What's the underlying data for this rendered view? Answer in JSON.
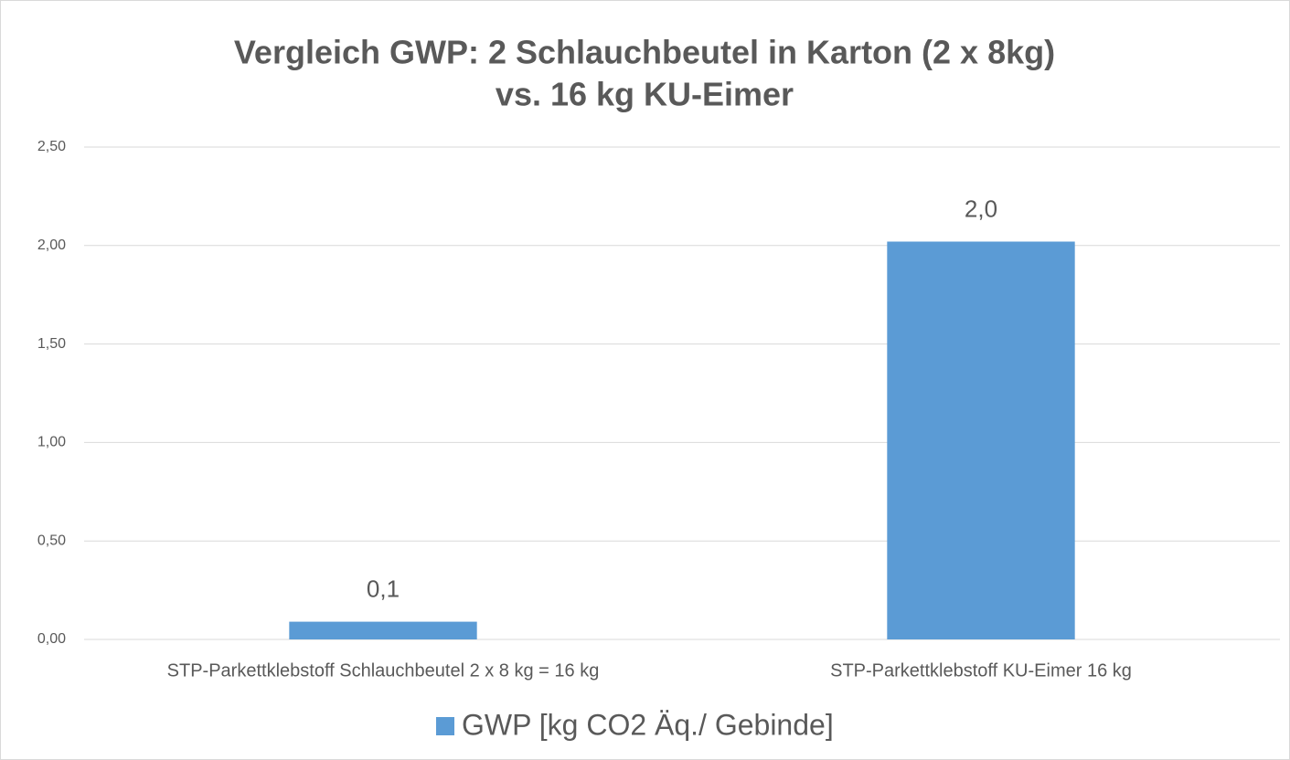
{
  "chart_data": {
    "type": "bar",
    "title": [
      "Vergleich GWP: 2 Schlauchbeutel in Karton (2 x 8kg)",
      "vs. 16 kg KU-Eimer"
    ],
    "categories": [
      "STP-Parkettklebstoff Schlauchbeutel 2 x 8 kg = 16 kg",
      "STP-Parkettklebstoff KU-Eimer 16 kg"
    ],
    "series": [
      {
        "name": "GWP [kg CO2 Äq./ Gebinde]",
        "color": "#5b9bd5",
        "values": [
          0.09,
          2.02
        ],
        "value_labels": [
          "0,1",
          "2,0"
        ]
      }
    ],
    "ylim": [
      0,
      2.5
    ],
    "yticks": [
      {
        "value": 0,
        "label": "0,00"
      },
      {
        "value": 0.5,
        "label": "0,50"
      },
      {
        "value": 1,
        "label": "1,00"
      },
      {
        "value": 1.5,
        "label": "1,50"
      },
      {
        "value": 2,
        "label": "2,00"
      },
      {
        "value": 2.5,
        "label": "2,50"
      }
    ],
    "grid": true,
    "legend": "bottom"
  }
}
